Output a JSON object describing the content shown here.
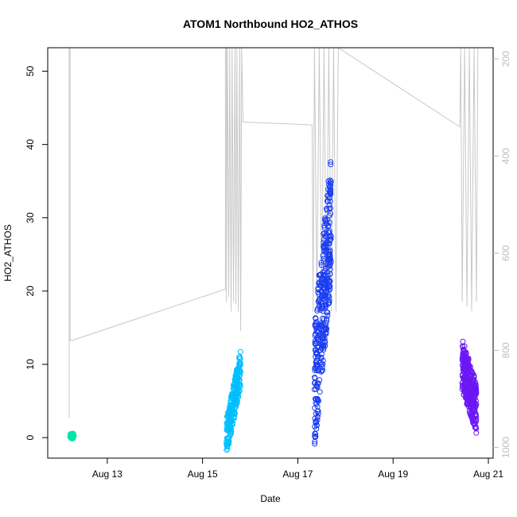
{
  "chart_data": {
    "type": "scatter",
    "title": "ATOM1 Northbound HO2_ATHOS",
    "xlabel": "Date",
    "ylabel": "HO2_ATHOS",
    "x_ticks": [
      "Aug 13",
      "Aug 15",
      "Aug 17",
      "Aug 19",
      "Aug 21"
    ],
    "x_tick_days": [
      13,
      15,
      17,
      19,
      21
    ],
    "xlim": [
      11.75,
      21.1
    ],
    "ylim": [
      -2.8,
      53.2
    ],
    "y_ticks": [
      0,
      10,
      20,
      30,
      40,
      50
    ],
    "right_axis": {
      "ticks": [
        200,
        400,
        600,
        800,
        1000
      ],
      "lim": [
        1022,
        177
      ],
      "color": "#bdbdbd"
    },
    "series": [
      {
        "color": "#00e6a8",
        "x_range": [
          12.22,
          12.3
        ],
        "y_center": 0.2,
        "y_spread": 0.35,
        "count": 60
      },
      {
        "color": "#00bfff",
        "x_range": [
          15.5,
          15.8
        ],
        "y_start": 0.0,
        "y_end": 9.5,
        "y_spread": 2.5,
        "count": 260
      },
      {
        "color": "#1a3df0",
        "x_range": [
          17.35,
          17.7
        ],
        "y_start": 7.0,
        "y_end": 30.0,
        "y_spread": 9.0,
        "count": 380
      },
      {
        "color": "#6b17f5",
        "x_range": [
          20.45,
          20.75
        ],
        "y_start": 10.0,
        "y_end": 4.0,
        "y_spread": 3.5,
        "count": 320
      }
    ],
    "altitude_path": [
      [
        12.2,
        940
      ],
      [
        12.2,
        100
      ],
      [
        12.22,
        100
      ],
      [
        12.22,
        780
      ],
      [
        12.25,
        780
      ],
      [
        15.45,
        675
      ],
      [
        15.48,
        675
      ],
      [
        15.48,
        100
      ],
      [
        15.5,
        100
      ],
      [
        15.5,
        700
      ],
      [
        15.52,
        100
      ],
      [
        15.55,
        690
      ],
      [
        15.57,
        100
      ],
      [
        15.6,
        720
      ],
      [
        15.62,
        100
      ],
      [
        15.65,
        700
      ],
      [
        15.68,
        100
      ],
      [
        15.7,
        705
      ],
      [
        15.72,
        100
      ],
      [
        15.75,
        720
      ],
      [
        15.78,
        100
      ],
      [
        15.8,
        760
      ],
      [
        15.82,
        100
      ],
      [
        15.85,
        330
      ],
      [
        17.3,
        336
      ],
      [
        17.32,
        720
      ],
      [
        17.35,
        100
      ],
      [
        17.4,
        700
      ],
      [
        17.45,
        100
      ],
      [
        17.5,
        690
      ],
      [
        17.55,
        100
      ],
      [
        17.6,
        710
      ],
      [
        17.65,
        100
      ],
      [
        17.7,
        720
      ],
      [
        17.75,
        100
      ],
      [
        17.8,
        720
      ],
      [
        17.85,
        170
      ],
      [
        20.4,
        340
      ],
      [
        20.42,
        100
      ],
      [
        20.45,
        700
      ],
      [
        20.5,
        100
      ],
      [
        20.55,
        710
      ],
      [
        20.6,
        100
      ],
      [
        20.65,
        720
      ],
      [
        20.7,
        100
      ],
      [
        20.75,
        700
      ],
      [
        20.78,
        100
      ]
    ]
  }
}
